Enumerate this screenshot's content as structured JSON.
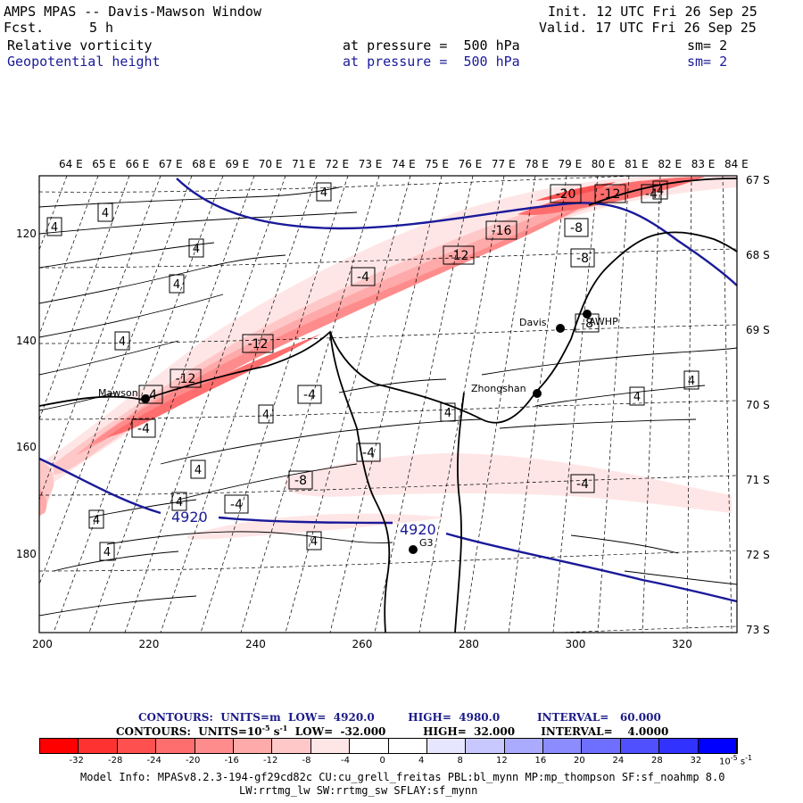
{
  "header": {
    "title": "AMPS MPAS -- Davis-Mawson Window",
    "fcst_label": "Fcst.",
    "fcst_value": "5 h",
    "init": "Init. 12 UTC Fri 26 Sep 25",
    "valid": "Valid. 17 UTC Fri 26 Sep 25",
    "field1": {
      "name": "Relative vorticity",
      "pressure": "at pressure =  500 hPa",
      "sm": "sm= 2"
    },
    "field2": {
      "name": "Geopotential height",
      "pressure": "at pressure =  500 hPa",
      "sm": "sm= 2"
    }
  },
  "lon_labels": [
    "64 E",
    "65 E",
    "66 E",
    "67 E",
    "68 E",
    "69 E",
    "70 E",
    "71 E",
    "72 E",
    "73 E",
    "74 E",
    "75 E",
    "76 E",
    "77 E",
    "78 E",
    "79 E",
    "80 E",
    "81 E",
    "82 E",
    "83 E",
    "84 E"
  ],
  "lat_labels": [
    "67 S",
    "68 S",
    "69 S",
    "70 S",
    "71 S",
    "72 S",
    "73 S"
  ],
  "y_ticks": [
    "120",
    "140",
    "160",
    "180"
  ],
  "x_ticks": [
    "200",
    "220",
    "240",
    "260",
    "280",
    "300",
    "320"
  ],
  "stations": [
    {
      "name": "Mawson"
    },
    {
      "name": "Davis"
    },
    {
      "name": "AWHP"
    },
    {
      "name": "Zhongshan"
    },
    {
      "name": "G3"
    }
  ],
  "height_labels": [
    "4920",
    "4920"
  ],
  "vort_labels": [
    "-20",
    "-12",
    "-4",
    "-16",
    "-8",
    "-12",
    "-8",
    "-4",
    "-12",
    "-12",
    "-4",
    "-4",
    "-8",
    "-4",
    "-8",
    "-4",
    "-4",
    "-4"
  ],
  "pos_labels": [
    "4",
    "4",
    "4",
    "4",
    "4",
    "4",
    "4",
    "4",
    "4",
    "4",
    "4",
    "4",
    "4",
    "4",
    "4",
    "4"
  ],
  "footer": {
    "contours1": "CONTOURS:  UNITS=m  LOW=  4920.0         HIGH=  4980.0          INTERVAL=   60.000",
    "contours2_a": "CONTOURS:  UNITS=10",
    "contours2_exp": "-5",
    "contours2_b": " s",
    "contours2_exp2": "-1",
    "contours2_c": "  LOW=  -32.000          HIGH=  32.000       INTERVAL=    4.0000"
  },
  "colorbar": {
    "ticks": [
      "-32",
      "-28",
      "-24",
      "-20",
      "-16",
      "-12",
      "-8",
      "-4",
      "0",
      "4",
      "8",
      "12",
      "16",
      "20",
      "24",
      "28",
      "32"
    ],
    "unit": "10",
    "unit_exp": "-5",
    "unit_b": " s",
    "unit_exp2": "-1",
    "colors": [
      "#ff0000",
      "#ff3232",
      "#ff5050",
      "#ff6e6e",
      "#ff8c8c",
      "#ffaaaa",
      "#ffc8c8",
      "#ffe6e6",
      "#ffffff",
      "#ffffff",
      "#e6e6ff",
      "#c8c8ff",
      "#aaaaff",
      "#8c8cff",
      "#6e6eff",
      "#5050ff",
      "#3232ff",
      "#0000ff"
    ]
  },
  "model_info": {
    "line1": "Model Info: MPASv8.2.3-194-gf29cd82c CU:cu_grell_freitas PBL:bl_mynn MP:mp_thompson SF:sf_noahmp 8.0",
    "line2": "LW:rrtmg_lw SW:rrtmg_sw SFLAY:sf_mynn"
  }
}
